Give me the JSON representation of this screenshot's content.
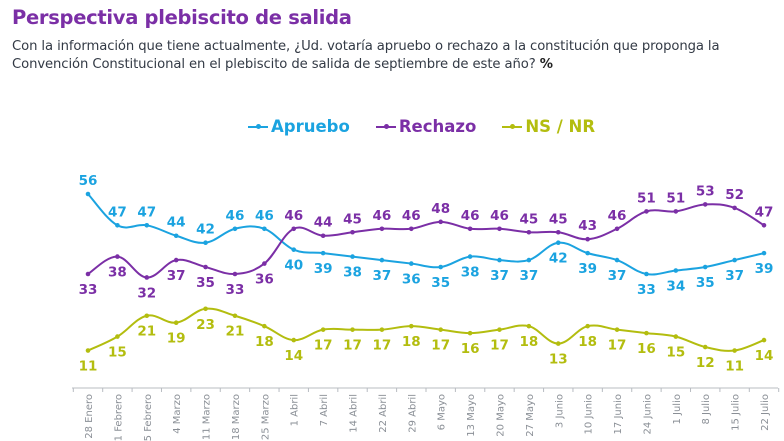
{
  "title": "Perspectiva plebiscito de salida",
  "subtitle_line1": "Con la información que tiene actualmente, ¿Ud. votaría apruebo o rechazo a la constitución que proponga la",
  "subtitle_line2": "Convención Constitucional en el plebiscito de salida de septiembre de este año?",
  "subtitle_unit": "%",
  "colors": {
    "title": "#7b2fa6",
    "apruebo": "#1ba3e0",
    "rechazo": "#7b2fa6",
    "nsnr": "#b3bd0f",
    "axis": "#b8bcc2",
    "tick_label": "#8a8f96"
  },
  "chart_data": {
    "type": "line",
    "title": "Perspectiva plebiscito de salida",
    "xlabel": "",
    "ylabel": "%",
    "ylim": [
      10,
      57
    ],
    "grid": false,
    "legend_position": "top-center",
    "categories": [
      "28 Enero",
      "1 Febrero",
      "5 Febrero",
      "4 Marzo",
      "11 Marzo",
      "18 Marzo",
      "25 Marzo",
      "1 Abril",
      "7 Abril",
      "14 Abril",
      "22 Abril",
      "29 Abril",
      "6 Mayo",
      "13 Mayo",
      "20 Mayo",
      "27 Mayo",
      "3 Junio",
      "10 Junio",
      "17 Junio",
      "24 Junio",
      "1 Julio",
      "8 Julio",
      "15 Julio",
      "22 Julio"
    ],
    "series": [
      {
        "name": "Apruebo",
        "key": "apruebo",
        "values": [
          56,
          47,
          47,
          44,
          42,
          46,
          46,
          40,
          39,
          38,
          37,
          36,
          35,
          38,
          37,
          37,
          42,
          39,
          37,
          33,
          34,
          35,
          37,
          39
        ],
        "label_pos": [
          "above",
          "above",
          "above",
          "above",
          "above",
          "above",
          "above",
          "below",
          "below",
          "below",
          "below",
          "below",
          "below",
          "below",
          "below",
          "below",
          "below",
          "below",
          "below",
          "below",
          "below",
          "below",
          "below",
          "below"
        ]
      },
      {
        "name": "Rechazo",
        "key": "rechazo",
        "values": [
          33,
          38,
          32,
          37,
          35,
          33,
          36,
          46,
          44,
          45,
          46,
          46,
          48,
          46,
          46,
          45,
          45,
          43,
          46,
          51,
          51,
          53,
          52,
          47
        ],
        "label_pos": [
          "below",
          "below",
          "below",
          "below",
          "below",
          "below",
          "below",
          "above",
          "above",
          "above",
          "above",
          "above",
          "above",
          "above",
          "above",
          "above",
          "above",
          "above",
          "above",
          "above",
          "above",
          "above",
          "above",
          "above"
        ]
      },
      {
        "name": "NS / NR",
        "key": "nsnr",
        "values": [
          11,
          15,
          21,
          19,
          23,
          21,
          18,
          14,
          17,
          17,
          17,
          18,
          17,
          16,
          17,
          18,
          13,
          18,
          17,
          16,
          15,
          12,
          11,
          14
        ],
        "label_pos": [
          "below",
          "below",
          "below",
          "below",
          "below",
          "below",
          "below",
          "below",
          "below",
          "below",
          "below",
          "below",
          "below",
          "below",
          "below",
          "below",
          "below",
          "below",
          "below",
          "below",
          "below",
          "below",
          "below",
          "below"
        ]
      }
    ]
  }
}
